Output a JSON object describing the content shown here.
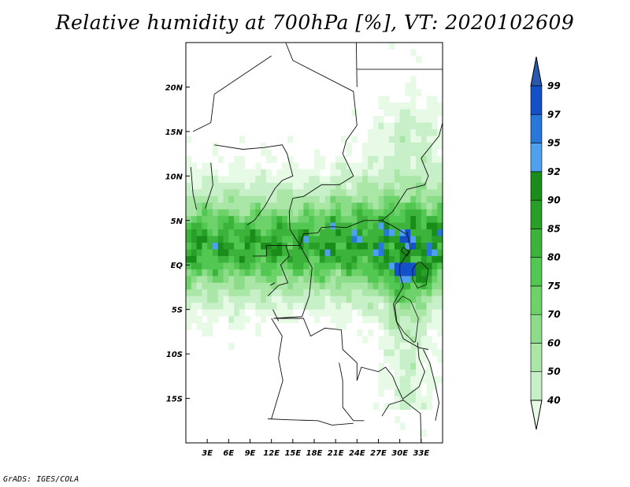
{
  "title": "Relative humidity at 700hPa [%], VT: 2020102609",
  "footer": "GrADS: IGES/COLA",
  "map": {
    "lon_range": [
      0,
      36
    ],
    "lat_range": [
      -20,
      25
    ],
    "lon_ticks": [
      {
        "v": 3,
        "label": "3E"
      },
      {
        "v": 6,
        "label": "6E"
      },
      {
        "v": 9,
        "label": "9E"
      },
      {
        "v": 12,
        "label": "12E"
      },
      {
        "v": 15,
        "label": "15E"
      },
      {
        "v": 18,
        "label": "18E"
      },
      {
        "v": 21,
        "label": "21E"
      },
      {
        "v": 24,
        "label": "24E"
      },
      {
        "v": 27,
        "label": "27E"
      },
      {
        "v": 30,
        "label": "30E"
      },
      {
        "v": 33,
        "label": "33E"
      }
    ],
    "lat_ticks": [
      {
        "v": 20,
        "label": "20N"
      },
      {
        "v": 15,
        "label": "15N"
      },
      {
        "v": 10,
        "label": "10N"
      },
      {
        "v": 5,
        "label": "5N"
      },
      {
        "v": 0,
        "label": "EQ"
      },
      {
        "v": -5,
        "label": "5S"
      },
      {
        "v": -10,
        "label": "10S"
      },
      {
        "v": -15,
        "label": "15S"
      }
    ]
  },
  "colorbar": {
    "levels": [
      "40",
      "50",
      "60",
      "70",
      "75",
      "80",
      "85",
      "90",
      "92",
      "95",
      "97",
      "99"
    ],
    "colors": [
      "#e6fae6",
      "#c8f0c8",
      "#aae6a6",
      "#8cdc8a",
      "#6ed26a",
      "#52c852",
      "#3cb43c",
      "#28a028",
      "#1a8c1a",
      "#50a0f0",
      "#2878dc",
      "#1450c8",
      "#2858b0"
    ],
    "below_color": "#ffffff"
  }
}
